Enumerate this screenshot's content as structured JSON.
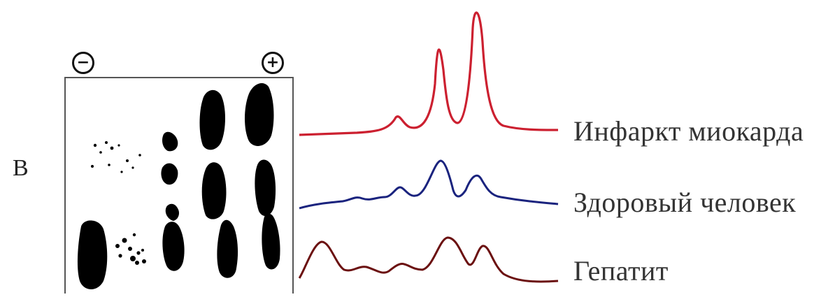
{
  "panel": {
    "letter": "В",
    "cathode_symbol": "−",
    "anode_symbol": "+"
  },
  "profiles": [
    {
      "key": "mi",
      "label": "Инфаркт миокарда",
      "color": "#cc2030"
    },
    {
      "key": "healthy",
      "label": "Здоровый человек",
      "color": "#1a237e"
    },
    {
      "key": "hepatitis",
      "label": "Гепатит",
      "color": "#6b1010"
    }
  ],
  "colors": {
    "ink": "#000000",
    "frame": "#555555"
  }
}
